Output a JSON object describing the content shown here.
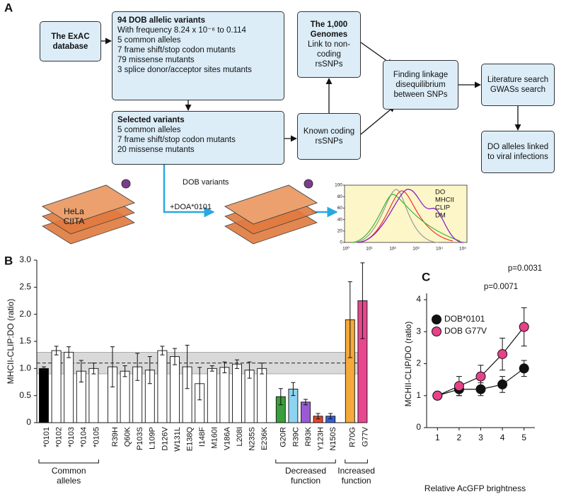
{
  "panel_a": {
    "label": "A",
    "nodes": [
      {
        "title": "The ExAC database",
        "lines": []
      },
      {
        "title": "94 DOB allelic variants",
        "lines": [
          "With frequency 8.24 x 10⁻⁶ to 0.114",
          "5 common alleles",
          "7 frame shift/stop codon mutants",
          "79 missense mutants",
          "3 splice donor/acceptor sites mutants"
        ]
      },
      {
        "title": "The 1,000 Genomes",
        "lines": [
          "Link to non-coding rsSNPs"
        ]
      },
      {
        "title": "Selected variants",
        "lines": [
          "5 common alleles",
          "7 frame shift/stop codon mutants",
          "20 missense mutants"
        ]
      },
      {
        "text": "Known coding rsSNPs"
      },
      {
        "text": "Finding linkage disequilibrium between SNPs"
      },
      {
        "text": "Literature search GWASs search"
      },
      {
        "text": "DO alleles linked to viral infections"
      }
    ],
    "cell_line": "HeLa CIITA",
    "flow_labels": [
      "DOB variants",
      "+DOA*0101"
    ],
    "inset": {
      "yticks": [
        0,
        20,
        40,
        60,
        80,
        100
      ],
      "xticks": [
        "10⁰",
        "10¹",
        "10²",
        "10³",
        "10⁴",
        "10⁵"
      ],
      "legend": [
        "DO",
        "MHCII",
        "CLIP",
        "DM"
      ]
    }
  },
  "chart_data": [
    {
      "type": "bar",
      "label": "B",
      "ylabel": "MHCII-CLIP:DO (ratio)",
      "categories": [
        "*0101",
        "*0102",
        "*0103",
        "*0104",
        "*0105",
        "R39H",
        "Q60K",
        "P103S",
        "L109P",
        "D126V",
        "W131L",
        "E138Q",
        "I148F",
        "M160I",
        "V186A",
        "L208I",
        "N235S",
        "E236K",
        "G20R",
        "R39C",
        "R93K",
        "Y123H",
        "N150S",
        "R70G",
        "G77V"
      ],
      "values": [
        1.0,
        1.33,
        1.3,
        0.95,
        1.0,
        1.03,
        0.95,
        1.03,
        0.97,
        1.33,
        1.22,
        1.03,
        0.72,
        1.0,
        1.02,
        1.08,
        0.97,
        1.0,
        0.48,
        0.62,
        0.38,
        0.12,
        0.12,
        1.9,
        2.25
      ],
      "errors": [
        0.03,
        0.08,
        0.1,
        0.2,
        0.1,
        0.37,
        0.1,
        0.25,
        0.25,
        0.08,
        0.15,
        0.4,
        0.3,
        0.05,
        0.1,
        0.08,
        0.15,
        0.1,
        0.15,
        0.12,
        0.05,
        0.05,
        0.05,
        0.7,
        0.7
      ],
      "colors": [
        "#000000",
        "#ffffff",
        "#ffffff",
        "#ffffff",
        "#ffffff",
        "#ffffff",
        "#ffffff",
        "#ffffff",
        "#ffffff",
        "#ffffff",
        "#ffffff",
        "#ffffff",
        "#ffffff",
        "#ffffff",
        "#ffffff",
        "#ffffff",
        "#ffffff",
        "#ffffff",
        "#3a9e3a",
        "#8ed3f0",
        "#9b59d8",
        "#e8452c",
        "#3b5fd9",
        "#f4a93a",
        "#e8488f"
      ],
      "ylim": [
        0,
        3
      ],
      "yticks": [
        0,
        0.5,
        {
          "value": 1,
          "label": "1.0"
        },
        1.5,
        {
          "value": 2,
          "label": "2.0"
        },
        2.5,
        {
          "value": 3,
          "label": "3.0"
        }
      ],
      "reference_band": [
        0.9,
        1.3
      ],
      "reference_line": 1.1,
      "group_labels": [
        "Common alleles",
        "Decreased function",
        "Increased function"
      ]
    },
    {
      "type": "line",
      "label": "C",
      "xlabel": "Relative AcGFP brightness",
      "ylabel": "MCHII-CLIP/DO (ratio)",
      "x": [
        1,
        2,
        3,
        4,
        5
      ],
      "xlim": [
        0.5,
        5.5
      ],
      "xticks": [
        1,
        2,
        3,
        4,
        5
      ],
      "ylim": [
        0,
        4.2
      ],
      "yticks": [
        0,
        1,
        2,
        3,
        4
      ],
      "series": [
        {
          "name": "DOB*0101",
          "color": "#111111",
          "values": [
            1,
            1.2,
            1.2,
            1.35,
            1.85
          ],
          "errors": [
            0.05,
            0.2,
            0.2,
            0.25,
            0.25
          ]
        },
        {
          "name": "DOB G77V",
          "color": "#e8418a",
          "values": [
            1,
            1.3,
            1.6,
            2.3,
            3.15
          ],
          "errors": [
            0.05,
            0.3,
            0.35,
            0.5,
            0.6
          ]
        }
      ],
      "annotations": [
        "p=0.0071",
        "p=0.0031"
      ]
    }
  ]
}
